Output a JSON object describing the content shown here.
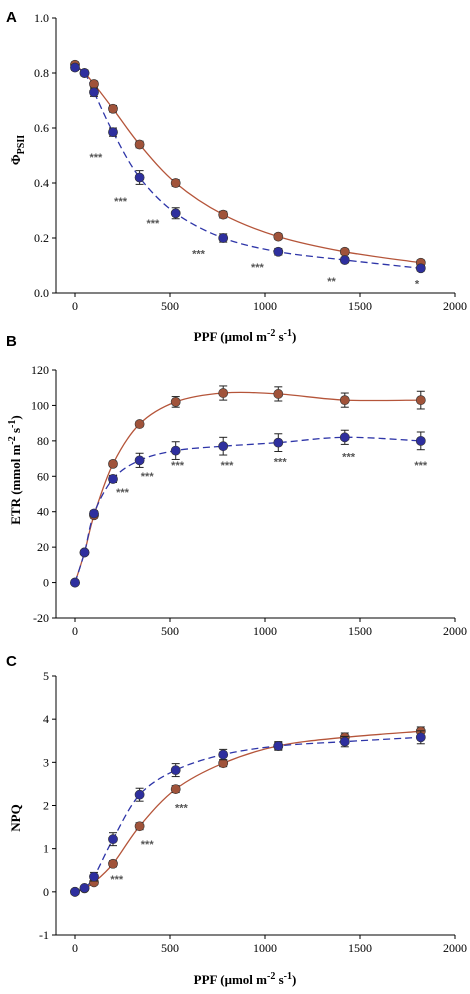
{
  "colors": {
    "series_brown": "#a0533a",
    "series_blue": "#2e2f9e",
    "fit_brown": "#b5553a",
    "fit_blue": "#2e35a8"
  },
  "chart_data": [
    {
      "panel": "A",
      "type": "scatter",
      "ylabel_main": "Φ",
      "ylabel_sub": "PSII",
      "xlabel_main": "PPF (μmol m",
      "xlabel_sup1": "-2",
      "xlabel_mid": " s",
      "xlabel_sup2": "-1",
      "xlabel_end": ")",
      "xlim": [
        -100,
        2000
      ],
      "ylim": [
        0,
        1.0
      ],
      "xticks": [
        "0",
        "500",
        "1000",
        "1500",
        "2000"
      ],
      "yticks": [
        "0.0",
        "0.2",
        "0.4",
        "0.6",
        "0.8",
        "1.0"
      ],
      "x": [
        0,
        50,
        100,
        200,
        340,
        530,
        780,
        1070,
        1420,
        1820
      ],
      "series": [
        {
          "color_key": "series_brown",
          "values": [
            0.83,
            0.8,
            0.76,
            0.67,
            0.54,
            0.4,
            0.285,
            0.205,
            0.15,
            0.11
          ],
          "err": [
            0.01,
            0.01,
            0.01,
            0.012,
            0.012,
            0.012,
            0.012,
            0.01,
            0.01,
            0.01
          ]
        },
        {
          "color_key": "series_blue",
          "values": [
            0.82,
            0.8,
            0.73,
            0.585,
            0.42,
            0.29,
            0.2,
            0.15,
            0.12,
            0.09
          ],
          "err": [
            0.01,
            0.01,
            0.015,
            0.015,
            0.025,
            0.02,
            0.015,
            0.012,
            0.01,
            0.01
          ]
        }
      ],
      "annotations": [
        {
          "x": 110,
          "y": 0.48,
          "text": "***"
        },
        {
          "x": 240,
          "y": 0.32,
          "text": "***"
        },
        {
          "x": 410,
          "y": 0.24,
          "text": "***"
        },
        {
          "x": 650,
          "y": 0.13,
          "text": "***"
        },
        {
          "x": 960,
          "y": 0.08,
          "text": "***"
        },
        {
          "x": 1350,
          "y": 0.03,
          "text": "**"
        },
        {
          "x": 1800,
          "y": 0.02,
          "text": "*"
        }
      ]
    },
    {
      "panel": "B",
      "type": "scatter",
      "ylabel_main": "ETR (mmol m",
      "ylabel_sup1": "-2",
      "ylabel_mid": " s",
      "ylabel_sup2": "-1",
      "ylabel_end": ")",
      "xlim": [
        -100,
        2000
      ],
      "ylim": [
        -20,
        120
      ],
      "xticks": [
        "0",
        "500",
        "1000",
        "1500",
        "2000"
      ],
      "yticks": [
        "-20",
        "0",
        "20",
        "40",
        "60",
        "80",
        "100",
        "120"
      ],
      "x": [
        0,
        50,
        100,
        200,
        340,
        530,
        780,
        1070,
        1420,
        1820
      ],
      "series": [
        {
          "color_key": "series_brown",
          "values": [
            0,
            17,
            38,
            67,
            89.5,
            102,
            107,
            106.5,
            103,
            103
          ],
          "err": [
            0,
            1,
            1.5,
            1.5,
            1.5,
            3,
            4,
            4,
            4,
            5
          ]
        },
        {
          "color_key": "series_blue",
          "values": [
            0,
            17,
            39,
            58.5,
            69,
            74.5,
            77,
            79,
            82,
            80
          ],
          "err": [
            0,
            1,
            1.5,
            2,
            4,
            5,
            5,
            5,
            4,
            5
          ]
        }
      ],
      "annotations": [
        {
          "x": 250,
          "y": 49,
          "text": "***"
        },
        {
          "x": 380,
          "y": 58,
          "text": "***"
        },
        {
          "x": 540,
          "y": 64,
          "text": "***"
        },
        {
          "x": 800,
          "y": 64,
          "text": "***"
        },
        {
          "x": 1080,
          "y": 66,
          "text": "***"
        },
        {
          "x": 1440,
          "y": 69,
          "text": "***"
        },
        {
          "x": 1820,
          "y": 64,
          "text": "***"
        }
      ]
    },
    {
      "panel": "C",
      "type": "scatter",
      "ylabel_main": "NPQ",
      "xlabel_main": "PPF (μmol m",
      "xlabel_sup1": "-2",
      "xlabel_mid": " s",
      "xlabel_sup2": "-1",
      "xlabel_end": ")",
      "xlim": [
        -100,
        2000
      ],
      "ylim": [
        -1,
        5
      ],
      "xticks": [
        "0",
        "500",
        "1000",
        "1500",
        "2000"
      ],
      "yticks": [
        "-1",
        "0",
        "1",
        "2",
        "3",
        "4",
        "5"
      ],
      "x": [
        0,
        50,
        100,
        200,
        340,
        530,
        780,
        1070,
        1420,
        1820
      ],
      "series": [
        {
          "color_key": "series_brown",
          "values": [
            0.0,
            0.08,
            0.22,
            0.65,
            1.52,
            2.38,
            2.98,
            3.38,
            3.58,
            3.72
          ],
          "err": [
            0.02,
            0.03,
            0.05,
            0.07,
            0.08,
            0.08,
            0.08,
            0.08,
            0.1,
            0.1
          ]
        },
        {
          "color_key": "series_blue",
          "values": [
            0.0,
            0.09,
            0.35,
            1.22,
            2.25,
            2.82,
            3.18,
            3.38,
            3.48,
            3.58
          ],
          "err": [
            0.02,
            0.05,
            0.1,
            0.15,
            0.15,
            0.15,
            0.12,
            0.1,
            0.12,
            0.15
          ]
        }
      ],
      "annotations": [
        {
          "x": 220,
          "y": 0.2,
          "text": "***"
        },
        {
          "x": 380,
          "y": 1.02,
          "text": "***"
        },
        {
          "x": 560,
          "y": 1.86,
          "text": "***"
        }
      ]
    }
  ]
}
